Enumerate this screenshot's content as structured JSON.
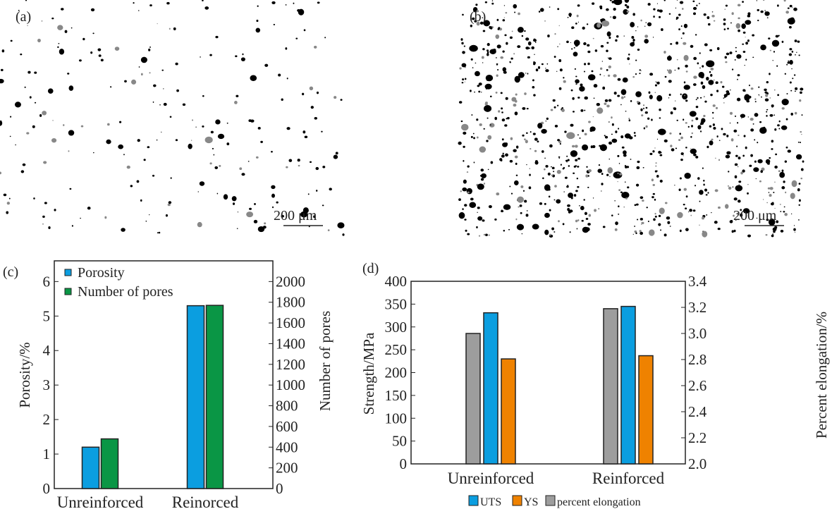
{
  "panels": {
    "a": {
      "label": "(a)",
      "scale_bar": "200 μm"
    },
    "b": {
      "label": "(b)",
      "scale_bar": "200 μm"
    }
  },
  "chart_data": [
    {
      "panel_label": "(c)",
      "type": "bar",
      "categories": [
        "Unreinforced",
        "Reinorced"
      ],
      "series": [
        {
          "name": "Porosity",
          "axis": "left",
          "color": "#0b9ee0",
          "values": [
            1.2,
            5.3
          ]
        },
        {
          "name": "Number of pores",
          "axis": "right",
          "color": "#0a9645",
          "values": [
            480,
            1770
          ]
        }
      ],
      "ylabel": "Porosity/%",
      "ylim": [
        0,
        6.6
      ],
      "yticks": [
        "0",
        "1",
        "2",
        "3",
        "4",
        "5",
        "6"
      ],
      "y2label": "Number of pores",
      "y2lim": [
        0,
        2200
      ],
      "y2ticks": [
        "0",
        "200",
        "400",
        "600",
        "800",
        "1000",
        "1200",
        "1400",
        "1600",
        "1800",
        "2000"
      ],
      "legend": "top-left"
    },
    {
      "panel_label": "(d)",
      "type": "bar",
      "categories": [
        "Unreinforced",
        "Reinforced"
      ],
      "series": [
        {
          "name": "percent elongation",
          "axis": "right",
          "color": "#9d9d9d",
          "values": [
            3.0,
            3.19
          ]
        },
        {
          "name": "UTS",
          "axis": "left",
          "color": "#0b9ee0",
          "values": [
            331,
            345
          ]
        },
        {
          "name": "YS",
          "axis": "left",
          "color": "#ef8200",
          "values": [
            230,
            237
          ]
        }
      ],
      "legend_order": [
        "UTS",
        "YS",
        "percent elongation"
      ],
      "ylabel": "Strength/MPa",
      "ylim": [
        0,
        400
      ],
      "yticks": [
        "0",
        "50",
        "100",
        "150",
        "200",
        "250",
        "300",
        "350",
        "400"
      ],
      "y2label": "Percent elongation/%",
      "y2lim": [
        2.0,
        3.4
      ],
      "y2ticks": [
        "2.0",
        "2.2",
        "2.4",
        "2.6",
        "2.8",
        "3.0",
        "3.2",
        "3.4"
      ],
      "legend": "bottom-center"
    }
  ]
}
